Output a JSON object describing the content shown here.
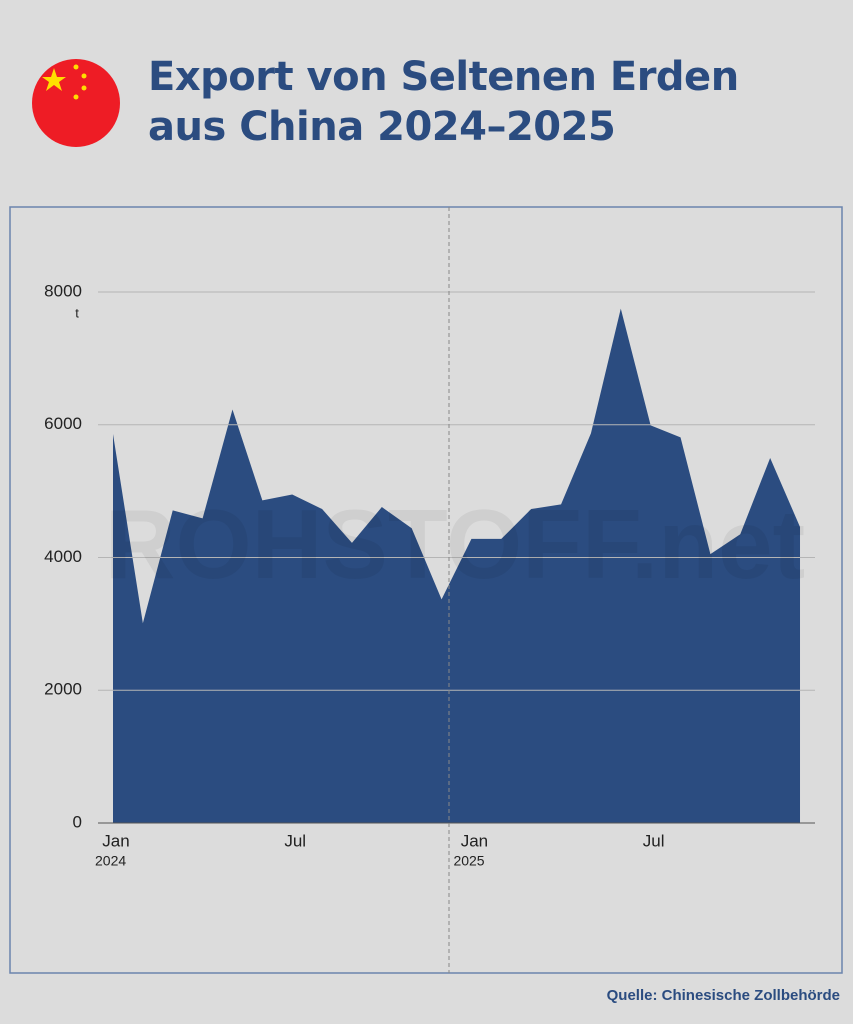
{
  "chart_data": {
    "type": "area",
    "title": "Export von Seltenen Erden aus China 2024–2025",
    "source": "Quelle: Chinesische Zollbehörde",
    "watermark": "ROHSTOFF.net",
    "y_unit": "t",
    "categories": [
      "Jan",
      null,
      null,
      null,
      null,
      null,
      "Jul",
      null,
      null,
      null,
      null,
      null,
      "Jan",
      null,
      null,
      null,
      null,
      null,
      "Jul",
      null,
      null,
      null,
      null,
      null
    ],
    "category_years": [
      "2024",
      null,
      null,
      null,
      null,
      null,
      null,
      null,
      null,
      null,
      null,
      null,
      "2025",
      null,
      null,
      null,
      null,
      null,
      null,
      null,
      null,
      null,
      null,
      null
    ],
    "values": [
      5860,
      3010,
      4710,
      4590,
      6230,
      4860,
      4950,
      4730,
      4220,
      4760,
      4440,
      3370,
      4280,
      4280,
      4730,
      4800,
      5870,
      7750,
      5990,
      5810,
      4050,
      4350,
      5500,
      4460
    ],
    "color": "#2b4c80",
    "ylim": [
      0,
      8000
    ],
    "yticks": [
      0,
      2000,
      4000,
      6000,
      8000
    ],
    "grid": true
  }
}
